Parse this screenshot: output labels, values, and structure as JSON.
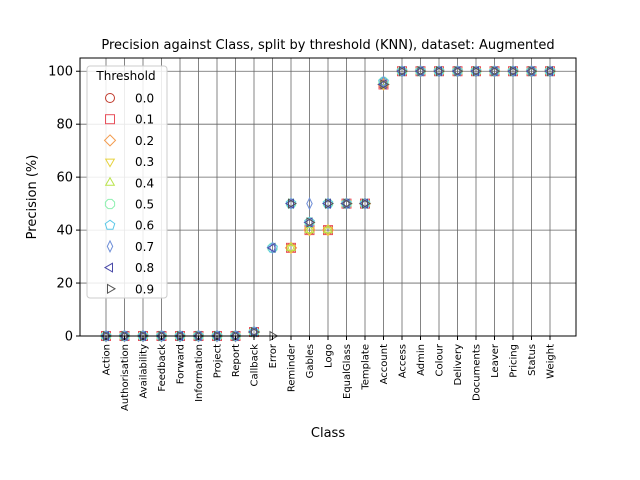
{
  "chart_data": {
    "type": "scatter",
    "title": "Precision against Class, split by threshold (KNN), dataset: Augmented",
    "xlabel": "Class",
    "ylabel": "Precision (%)",
    "ylim": [
      0,
      105
    ],
    "yticks": [
      0,
      20,
      40,
      60,
      80,
      100
    ],
    "grid": true,
    "legend_title": "Threshold",
    "legend_position": "top-left",
    "categories": [
      "Action",
      "Authorisation",
      "Availability",
      "Feedback",
      "Forward",
      "Information",
      "Project",
      "Report",
      "Callback",
      "Error",
      "Reminder",
      "Gables",
      "Logo",
      "EqualGlass",
      "Template",
      "Account",
      "Access",
      "Admin",
      "Colour",
      "Delivery",
      "Documents",
      "Leaver",
      "Pricing",
      "Status",
      "Weight"
    ],
    "series": [
      {
        "name": "0.0",
        "marker": "circle",
        "color": "#c0392b",
        "values": [
          0,
          0,
          0,
          0,
          0,
          0,
          0,
          0,
          1.5,
          null,
          33.3,
          40,
          40,
          50,
          50,
          95,
          100,
          100,
          100,
          100,
          100,
          100,
          100,
          100,
          100
        ]
      },
      {
        "name": "0.1",
        "marker": "square",
        "color": "#e8505b",
        "values": [
          0,
          0,
          0,
          0,
          0,
          0,
          0,
          0,
          1.5,
          null,
          33.3,
          40,
          40,
          50,
          50,
          95,
          100,
          100,
          100,
          100,
          100,
          100,
          100,
          100,
          100
        ]
      },
      {
        "name": "0.2",
        "marker": "diamond",
        "color": "#f39c4f",
        "values": [
          0,
          0,
          0,
          0,
          0,
          0,
          0,
          0,
          1.5,
          null,
          33.3,
          40,
          40,
          50,
          50,
          95,
          100,
          100,
          100,
          100,
          100,
          100,
          100,
          100,
          100
        ]
      },
      {
        "name": "0.3",
        "marker": "triangle-down",
        "color": "#e6d23c",
        "values": [
          0,
          0,
          0,
          0,
          0,
          0,
          0,
          0,
          1.5,
          null,
          33.3,
          40,
          40,
          50,
          50,
          95,
          100,
          100,
          100,
          100,
          100,
          100,
          100,
          100,
          100
        ]
      },
      {
        "name": "0.4",
        "marker": "triangle-up",
        "color": "#b9e34a",
        "values": [
          0,
          0,
          0,
          0,
          0,
          0,
          0,
          0,
          1.5,
          null,
          33.3,
          40,
          40,
          50,
          50,
          96,
          100,
          100,
          100,
          100,
          100,
          100,
          100,
          100,
          100
        ]
      },
      {
        "name": "0.5",
        "marker": "octagon",
        "color": "#8ef0b0",
        "values": [
          0,
          0,
          0,
          0,
          0,
          0,
          0,
          0,
          1.5,
          33.3,
          50,
          42.9,
          50,
          50,
          50,
          96,
          100,
          100,
          100,
          100,
          100,
          100,
          100,
          100,
          100
        ]
      },
      {
        "name": "0.6",
        "marker": "pentagon",
        "color": "#5bc8e8",
        "values": [
          0,
          0,
          0,
          0,
          0,
          0,
          0,
          0,
          1.5,
          33.3,
          50,
          42.9,
          50,
          50,
          50,
          96,
          100,
          100,
          100,
          100,
          100,
          100,
          100,
          100,
          100
        ]
      },
      {
        "name": "0.7",
        "marker": "thin-diamond",
        "color": "#6f8fd8",
        "values": [
          0,
          0,
          0,
          0,
          0,
          0,
          0,
          0,
          1.5,
          33.3,
          50,
          50,
          50,
          50,
          50,
          96,
          100,
          100,
          100,
          100,
          100,
          100,
          100,
          100,
          100
        ]
      },
      {
        "name": "0.8",
        "marker": "triangle-left",
        "color": "#4a4aa8",
        "values": [
          0,
          0,
          0,
          0,
          0,
          0,
          0,
          0,
          1.5,
          33.3,
          50,
          42.9,
          50,
          50,
          50,
          95,
          100,
          100,
          100,
          100,
          100,
          100,
          100,
          100,
          100
        ]
      },
      {
        "name": "0.9",
        "marker": "triangle-right",
        "color": "#555555",
        "values": [
          0,
          0,
          0,
          0,
          0,
          0,
          0,
          0,
          1.5,
          0,
          50,
          42.9,
          50,
          50,
          50,
          95,
          100,
          100,
          100,
          100,
          100,
          100,
          100,
          100,
          100
        ]
      }
    ]
  }
}
